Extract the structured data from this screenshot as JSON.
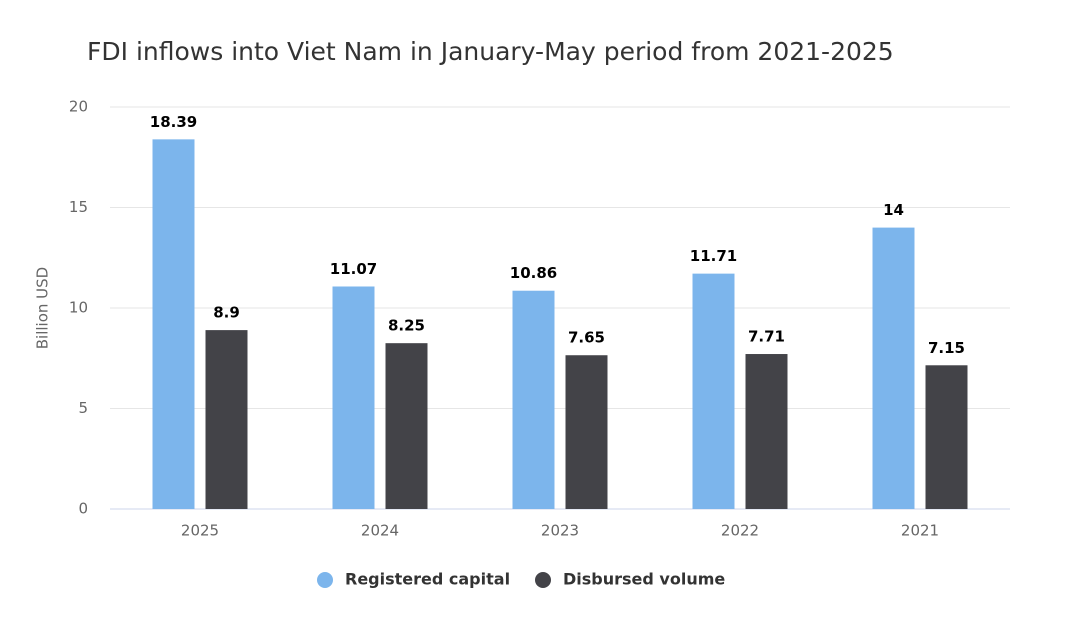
{
  "chart_data": {
    "type": "bar",
    "title": "FDI inflows into Viet Nam in January-May period from 2021-2025",
    "y_label": "Billion USD",
    "categories": [
      "2025",
      "2024",
      "2023",
      "2022",
      "2021"
    ],
    "series": [
      {
        "name": "Registered capital",
        "color": "#7cb5ec",
        "values": [
          18.39,
          11.07,
          10.86,
          11.71,
          14
        ]
      },
      {
        "name": "Disbursed volume",
        "color": "#434348",
        "values": [
          8.9,
          8.25,
          7.65,
          7.71,
          7.15
        ]
      }
    ],
    "ylim": [
      0,
      20
    ],
    "yticks": [
      0,
      5,
      10,
      15,
      20
    ],
    "grid": true,
    "legend": "bottom"
  }
}
